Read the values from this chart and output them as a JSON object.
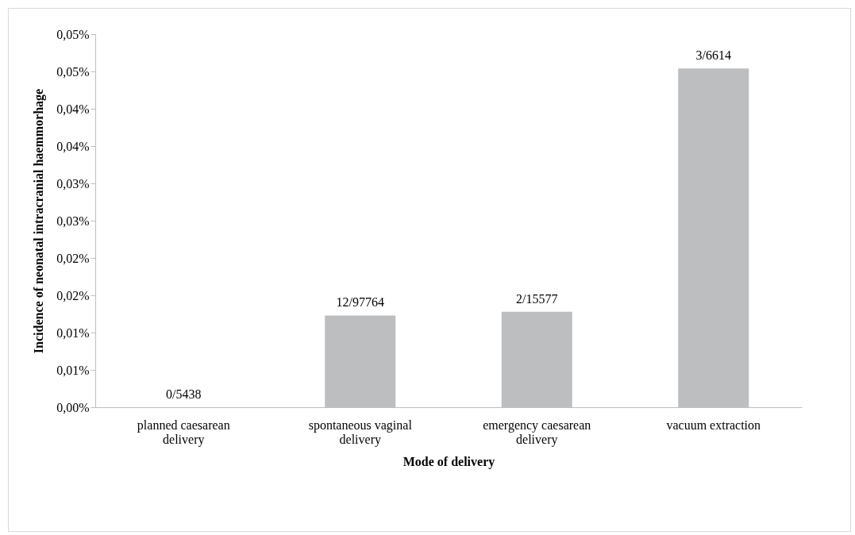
{
  "chart_data": {
    "type": "bar",
    "xlabel": "Mode of delivery",
    "ylabel": "Incidence of neonatal intracranial haemmorhage",
    "categories": [
      "planned caesarean delivery",
      "spontaneous vaginal delivery",
      "emergency caesarean delivery",
      "vacuum extraction"
    ],
    "values": [
      0,
      0.0123,
      0.0128,
      0.0454
    ],
    "value_labels": [
      "0/5438",
      "12/97764",
      "2/15577",
      "3/6614"
    ],
    "color": "#bdbec0",
    "ylim": [
      0,
      0.05
    ],
    "yticks": [
      {
        "value": 0,
        "label": "0,00%"
      },
      {
        "value": 0.005,
        "label": "0,01%"
      },
      {
        "value": 0.01,
        "label": "0,01%"
      },
      {
        "value": 0.015,
        "label": "0,02%"
      },
      {
        "value": 0.02,
        "label": "0,02%"
      },
      {
        "value": 0.025,
        "label": "0,03%"
      },
      {
        "value": 0.03,
        "label": "0,03%"
      },
      {
        "value": 0.035,
        "label": "0,04%"
      },
      {
        "value": 0.04,
        "label": "0,04%"
      },
      {
        "value": 0.045,
        "label": "0,05%"
      },
      {
        "value": 0.05,
        "label": "0,05%"
      }
    ],
    "grid": false
  }
}
